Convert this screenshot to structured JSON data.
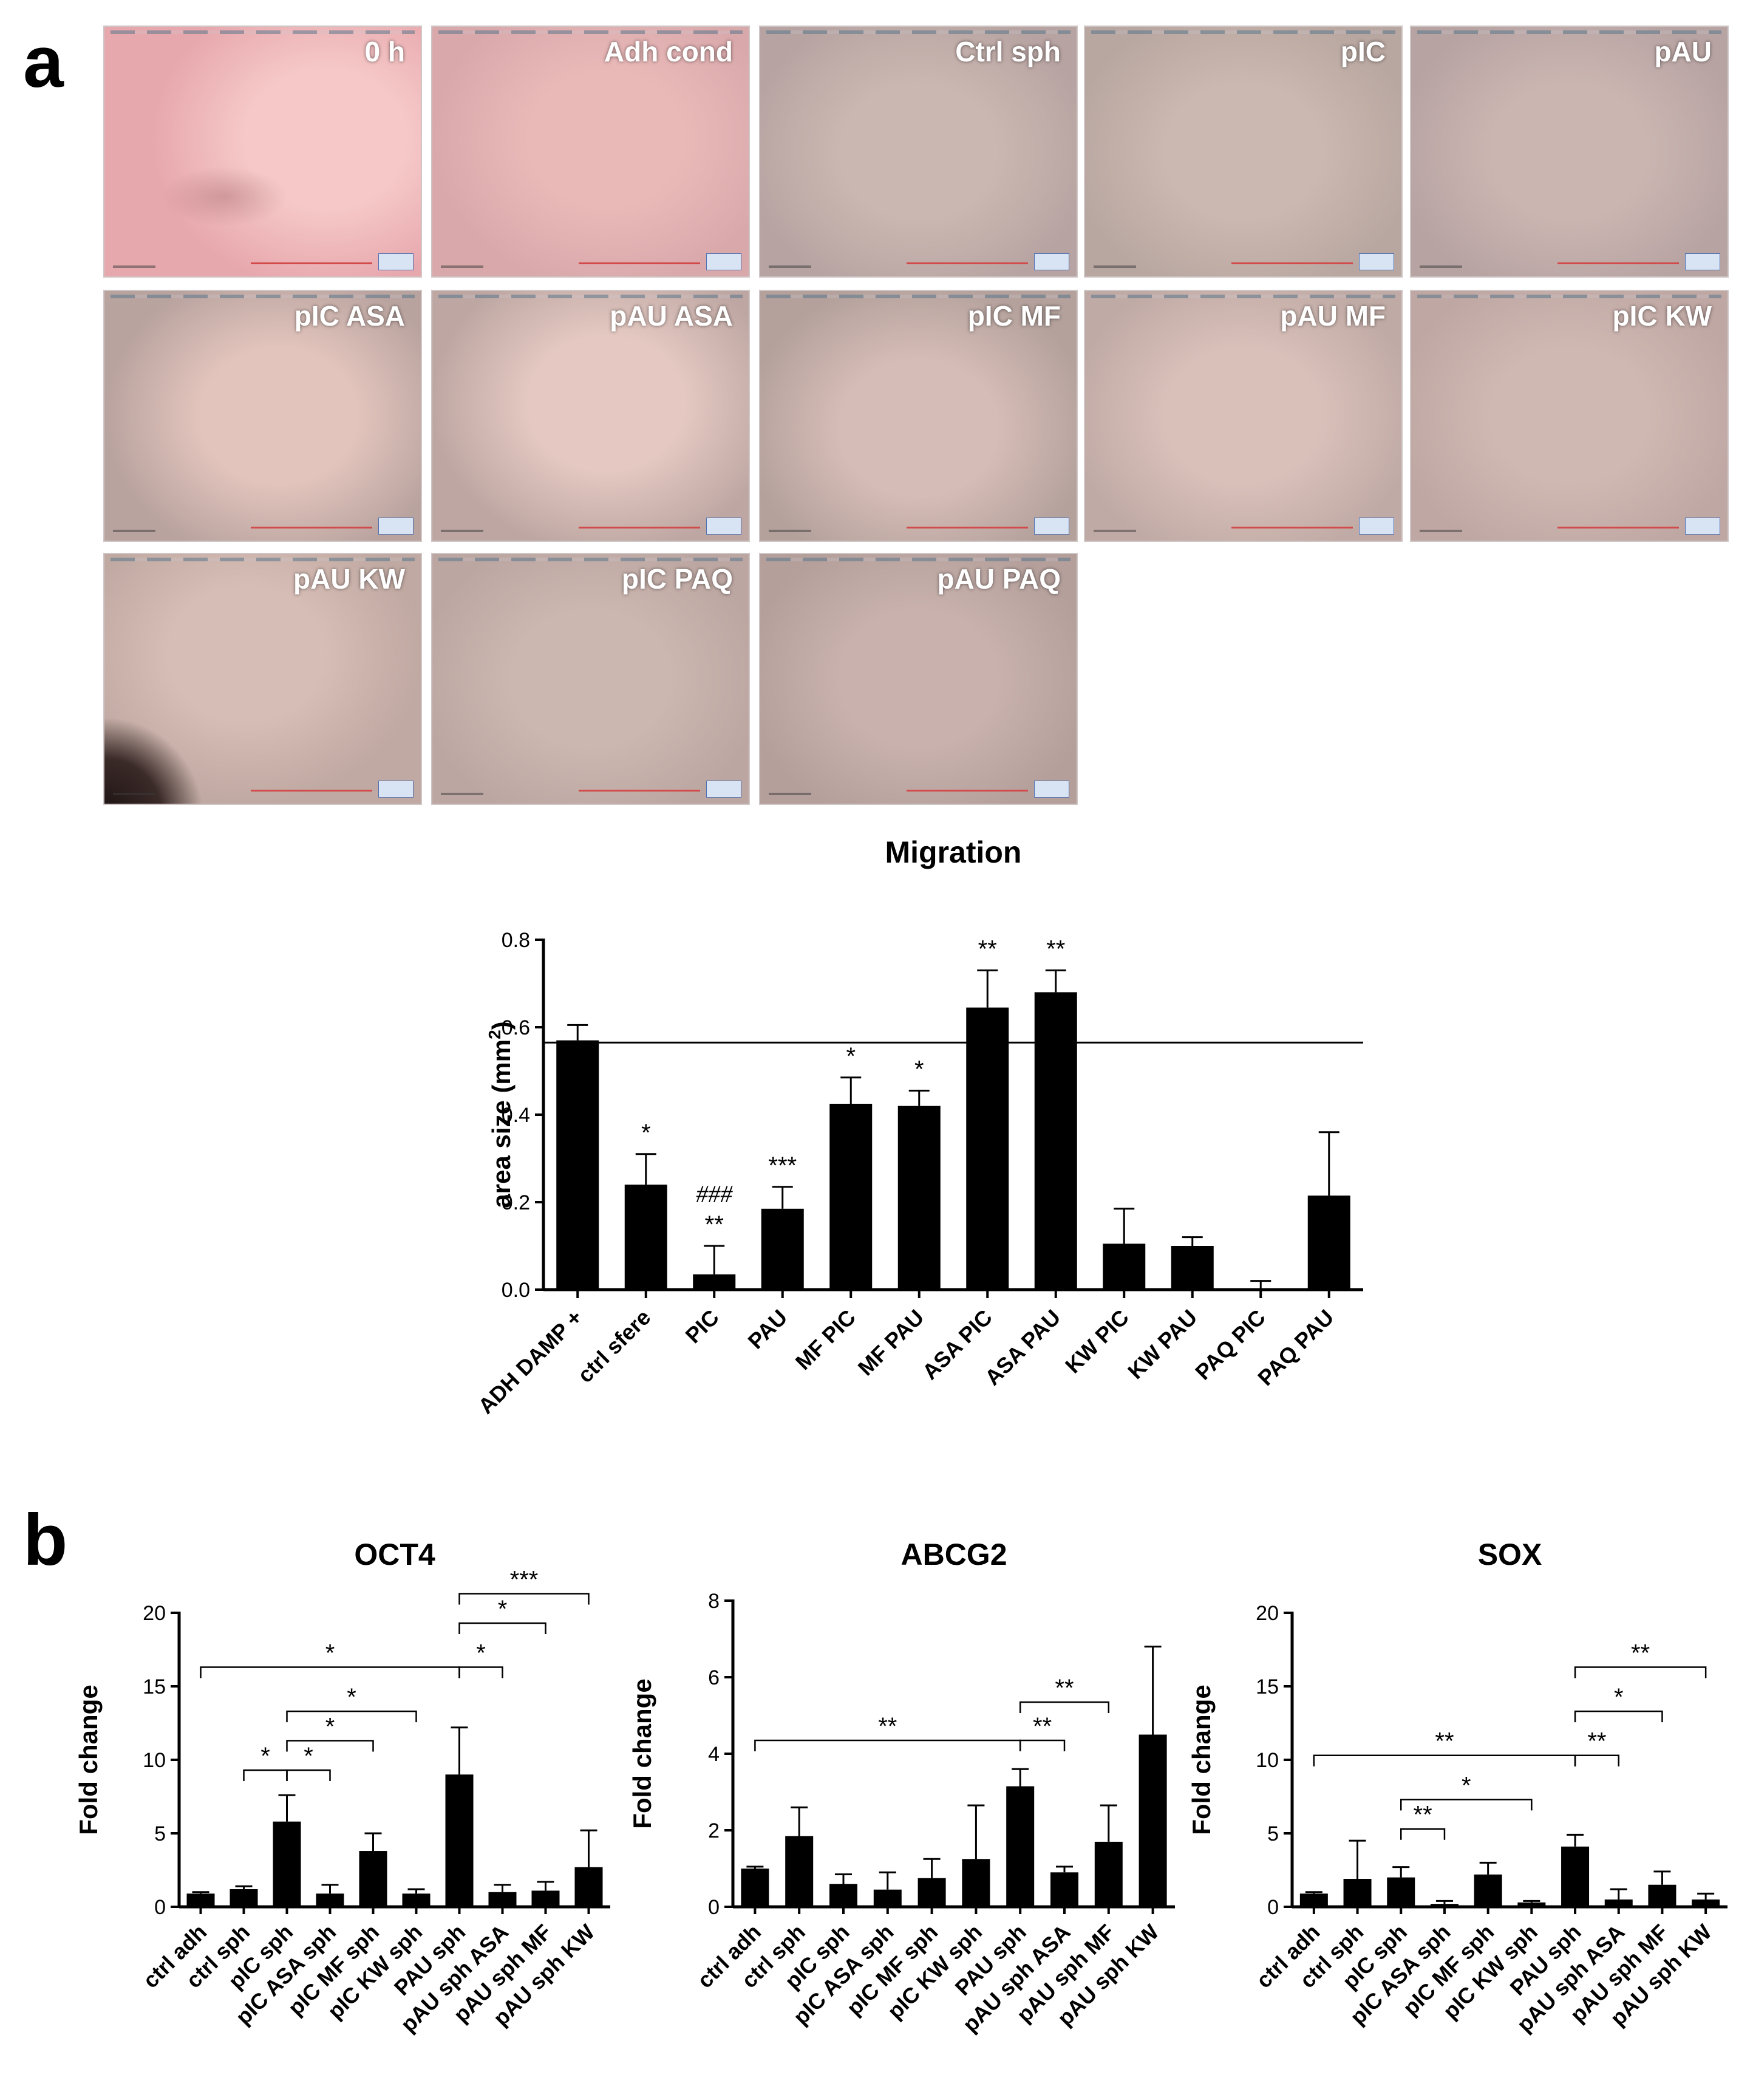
{
  "panels": {
    "a": "a",
    "b": "b"
  },
  "micrographs": [
    {
      "label": "0 h",
      "bg": "#e7a8ad",
      "center": "#f6c9c8"
    },
    {
      "label": "Adh cond",
      "bg": "#d9a8ab",
      "center": "#e9b9b8"
    },
    {
      "label": "Ctrl sph",
      "bg": "#b7a3a1",
      "center": "#cbb7b1"
    },
    {
      "label": "pIC",
      "bg": "#b8a6a0",
      "center": "#cbb8b0"
    },
    {
      "label": "pAU",
      "bg": "#b7a3a2",
      "center": "#cab5b1"
    },
    {
      "label": "pIC ASA",
      "bg": "#b9a39f",
      "center": "#e2c4bc"
    },
    {
      "label": "pAU ASA",
      "bg": "#bea7a3",
      "center": "#e4c8c1"
    },
    {
      "label": "pIC MF",
      "bg": "#b4a19c",
      "center": "#d6bcb6"
    },
    {
      "label": "pAU MF",
      "bg": "#c0aaa5",
      "center": "#d9c0b9"
    },
    {
      "label": "pIC KW",
      "bg": "#bfa7a3",
      "center": "#cfb7b2"
    },
    {
      "label": "pAU KW",
      "bg": "#c0a9a2",
      "center": "#d6bdb5"
    },
    {
      "label": "pIC PAQ",
      "bg": "#bca6a1",
      "center": "#ccb6b0"
    },
    {
      "label": "pAU PAQ",
      "bg": "#b49f9b",
      "center": "#c9b2ad"
    }
  ],
  "chart_data": [
    {
      "type": "bar",
      "title": "Migration",
      "xlabel": "",
      "ylabel": "area size (mm",
      "ylabel_sup": "2",
      "ylabel_end": ")",
      "ylim": [
        0,
        0.8
      ],
      "yticks": [
        "0.0",
        "0.2",
        "0.4",
        "0.6",
        "0.8"
      ],
      "categories": [
        "ADH DAMP +",
        "ctrl sfere",
        "PIC",
        "PAU",
        "MF PIC",
        "MF PAU",
        "ASA PIC",
        "ASA PAU",
        "KW PIC",
        "KW PAU",
        "PAQ PIC",
        "PAQ PAU"
      ],
      "values": [
        0.57,
        0.24,
        0.035,
        0.185,
        0.425,
        0.42,
        0.645,
        0.68,
        0.105,
        0.1,
        0.0,
        0.215
      ],
      "errors": [
        0.035,
        0.07,
        0.065,
        0.05,
        0.06,
        0.035,
        0.085,
        0.05,
        0.08,
        0.02,
        0.02,
        0.145
      ],
      "annotations": [
        "",
        "*",
        "**",
        "***",
        "*",
        "*",
        "**",
        "**",
        "",
        "",
        "",
        ""
      ],
      "annotations2": [
        "",
        "",
        "###",
        "",
        "",
        "",
        "",
        "",
        "",
        "",
        "",
        ""
      ],
      "reference_line": 0.565
    },
    {
      "type": "bar",
      "title": "OCT4",
      "ylabel": "Fold change",
      "ylim": [
        0,
        20
      ],
      "yticks": [
        "0",
        "5",
        "10",
        "15",
        "20"
      ],
      "categories": [
        "ctrl adh",
        "ctrl sph",
        "pIC sph",
        "pIC ASA sph",
        "pIC MF sph",
        "pIC KW sph",
        "PAU sph",
        "pAU sph ASA",
        "pAU sph MF",
        "pAU sph KW"
      ],
      "values": [
        0.9,
        1.2,
        5.8,
        0.9,
        3.8,
        0.9,
        9.0,
        1.0,
        1.1,
        2.7
      ],
      "errors": [
        0.1,
        0.2,
        1.8,
        0.6,
        1.2,
        0.3,
        3.2,
        0.5,
        0.6,
        2.5
      ],
      "significance": [
        {
          "from": 0,
          "to": 6,
          "y": 16.3,
          "label": "*"
        },
        {
          "from": 1,
          "to": 2,
          "y": 9.3,
          "label": "*"
        },
        {
          "from": 2,
          "to": 3,
          "y": 9.3,
          "label": "*"
        },
        {
          "from": 2,
          "to": 4,
          "y": 11.3,
          "label": "*"
        },
        {
          "from": 2,
          "to": 5,
          "y": 13.3,
          "label": "*"
        },
        {
          "from": 6,
          "to": 7,
          "y": 16.3,
          "label": "*"
        },
        {
          "from": 6,
          "to": 8,
          "y": 19.3,
          "label": "*"
        },
        {
          "from": 6,
          "to": 9,
          "y": 21.3,
          "label": "***"
        }
      ]
    },
    {
      "type": "bar",
      "title": "ABCG2",
      "ylabel": "Fold change",
      "ylim": [
        0,
        8
      ],
      "yticks": [
        "0",
        "2",
        "4",
        "6",
        "8"
      ],
      "categories": [
        "ctrl adh",
        "ctrl sph",
        "pIC sph",
        "pIC ASA sph",
        "pIC MF sph",
        "pIC KW sph",
        "PAU sph",
        "pAU sph ASA",
        "pAU sph MF",
        "pAU sph KW"
      ],
      "values": [
        1.0,
        1.85,
        0.6,
        0.45,
        0.75,
        1.25,
        3.15,
        0.9,
        1.7,
        4.5
      ],
      "errors": [
        0.05,
        0.75,
        0.25,
        0.45,
        0.5,
        1.4,
        0.45,
        0.15,
        0.95,
        2.3
      ],
      "significance": [
        {
          "from": 0,
          "to": 6,
          "y": 4.35,
          "label": "**"
        },
        {
          "from": 6,
          "to": 7,
          "y": 4.35,
          "label": "**"
        },
        {
          "from": 6,
          "to": 8,
          "y": 5.35,
          "label": "**"
        }
      ]
    },
    {
      "type": "bar",
      "title": "SOX",
      "ylabel": "Fold change",
      "ylim": [
        0,
        20
      ],
      "yticks": [
        "0",
        "5",
        "10",
        "15",
        "20"
      ],
      "categories": [
        "ctrl adh",
        "ctrl sph",
        "pIC sph",
        "pIC ASA sph",
        "pIC MF sph",
        "pIC KW sph",
        "PAU sph",
        "pAU sph ASA",
        "pAU sph MF",
        "pAU sph KW"
      ],
      "values": [
        0.9,
        1.9,
        2.0,
        0.2,
        2.2,
        0.3,
        4.1,
        0.5,
        1.5,
        0.5
      ],
      "errors": [
        0.1,
        2.6,
        0.7,
        0.2,
        0.8,
        0.1,
        0.8,
        0.7,
        0.9,
        0.4
      ],
      "significance": [
        {
          "from": 0,
          "to": 6,
          "y": 10.3,
          "label": "**"
        },
        {
          "from": 2,
          "to": 3,
          "y": 5.3,
          "label": "**"
        },
        {
          "from": 2,
          "to": 5,
          "y": 7.3,
          "label": "*"
        },
        {
          "from": 6,
          "to": 7,
          "y": 10.3,
          "label": "**"
        },
        {
          "from": 6,
          "to": 8,
          "y": 13.3,
          "label": "*"
        },
        {
          "from": 6,
          "to": 9,
          "y": 16.3,
          "label": "**"
        }
      ]
    }
  ]
}
